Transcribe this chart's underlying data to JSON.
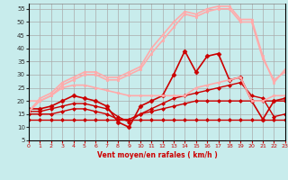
{
  "xlabel": "Vent moyen/en rafales ( km/h )",
  "xlim": [
    0,
    23
  ],
  "ylim": [
    5,
    57
  ],
  "yticks": [
    5,
    10,
    15,
    20,
    25,
    30,
    35,
    40,
    45,
    50,
    55
  ],
  "xticks": [
    0,
    1,
    2,
    3,
    4,
    5,
    6,
    7,
    8,
    9,
    10,
    11,
    12,
    13,
    14,
    15,
    16,
    17,
    18,
    19,
    20,
    21,
    22,
    23
  ],
  "background_color": "#c8ecec",
  "grid_color": "#aaaaaa",
  "series": [
    {
      "x": [
        0,
        1,
        2,
        3,
        4,
        5,
        6,
        7,
        8,
        9,
        10,
        11,
        12,
        13,
        14,
        15,
        16,
        17,
        18,
        19,
        20,
        21,
        22,
        23
      ],
      "y": [
        13,
        13,
        13,
        13,
        13,
        13,
        13,
        13,
        13,
        13,
        13,
        13,
        13,
        13,
        13,
        13,
        13,
        13,
        13,
        13,
        13,
        13,
        13,
        13
      ],
      "color": "#cc0000",
      "lw": 1.0,
      "marker": "D",
      "ms": 2.0
    },
    {
      "x": [
        0,
        1,
        2,
        3,
        4,
        5,
        6,
        7,
        8,
        9,
        10,
        11,
        12,
        13,
        14,
        15,
        16,
        17,
        18,
        19,
        20,
        21,
        22,
        23
      ],
      "y": [
        15,
        15,
        15,
        16,
        17,
        17,
        16,
        15,
        13,
        13,
        15,
        16,
        17,
        18,
        19,
        20,
        20,
        20,
        20,
        20,
        20,
        20,
        20,
        20
      ],
      "color": "#cc0000",
      "lw": 1.0,
      "marker": "D",
      "ms": 2.0
    },
    {
      "x": [
        0,
        1,
        2,
        3,
        4,
        5,
        6,
        7,
        8,
        9,
        10,
        11,
        12,
        13,
        14,
        15,
        16,
        17,
        18,
        19,
        20,
        21,
        22,
        23
      ],
      "y": [
        16,
        16,
        17,
        18,
        19,
        19,
        18,
        17,
        14,
        12,
        15,
        17,
        19,
        21,
        22,
        23,
        24,
        25,
        26,
        27,
        22,
        21,
        14,
        15
      ],
      "color": "#cc0000",
      "lw": 1.0,
      "marker": "D",
      "ms": 2.0
    },
    {
      "x": [
        0,
        1,
        2,
        3,
        4,
        5,
        6,
        7,
        8,
        9,
        10,
        11,
        12,
        13,
        14,
        15,
        16,
        17,
        18,
        19,
        20,
        21,
        22,
        23
      ],
      "y": [
        17,
        17,
        18,
        20,
        22,
        21,
        20,
        18,
        12,
        10,
        18,
        20,
        22,
        30,
        39,
        31,
        37,
        38,
        28,
        29,
        20,
        13,
        20,
        21
      ],
      "color": "#cc0000",
      "lw": 1.2,
      "marker": "D",
      "ms": 2.5
    },
    {
      "x": [
        0,
        1,
        2,
        3,
        4,
        5,
        6,
        7,
        8,
        9,
        10,
        11,
        12,
        13,
        14,
        15,
        16,
        17,
        18,
        19,
        20,
        21,
        22,
        23
      ],
      "y": [
        20,
        20,
        22,
        25,
        26,
        26,
        25,
        24,
        23,
        22,
        22,
        22,
        22,
        22,
        22,
        25,
        26,
        27,
        28,
        29,
        20,
        20,
        22,
        22
      ],
      "color": "#ffaaaa",
      "lw": 1.2,
      "marker": "s",
      "ms": 2.0
    },
    {
      "x": [
        0,
        1,
        2,
        3,
        4,
        5,
        6,
        7,
        8,
        9,
        10,
        11,
        12,
        13,
        14,
        15,
        16,
        17,
        18,
        19,
        20,
        21,
        22,
        23
      ],
      "y": [
        16,
        20,
        22,
        26,
        28,
        30,
        30,
        28,
        28,
        30,
        32,
        38,
        43,
        48,
        53,
        52,
        54,
        55,
        55,
        50,
        50,
        36,
        28,
        31
      ],
      "color": "#ffaaaa",
      "lw": 1.2,
      "marker": "s",
      "ms": 2.0
    },
    {
      "x": [
        0,
        1,
        2,
        3,
        4,
        5,
        6,
        7,
        8,
        9,
        10,
        11,
        12,
        13,
        14,
        15,
        16,
        17,
        18,
        19,
        20,
        21,
        22,
        23
      ],
      "y": [
        16,
        21,
        23,
        27,
        29,
        31,
        31,
        29,
        29,
        31,
        33,
        40,
        45,
        50,
        54,
        53,
        55,
        56,
        56,
        51,
        51,
        37,
        27,
        32
      ],
      "color": "#ffaaaa",
      "lw": 1.2,
      "marker": "s",
      "ms": 2.0
    }
  ]
}
